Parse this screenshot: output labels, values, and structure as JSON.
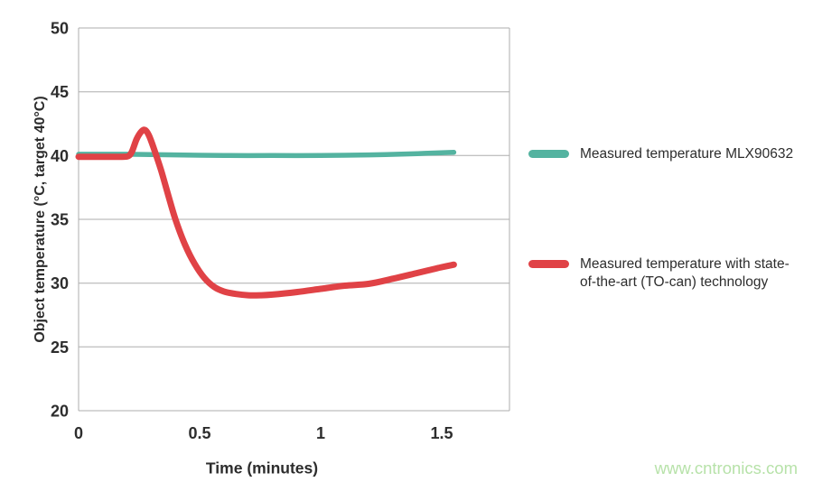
{
  "watermark": "www.cntronics.com",
  "chart_data": {
    "type": "line",
    "title": "",
    "xlabel": "Time (minutes)",
    "ylabel": "Object temperature (°C, target 40°C)",
    "xlim": [
      0,
      1.78
    ],
    "ylim": [
      20,
      50
    ],
    "grid": "horizontal-gridlines-only",
    "legend_position": "right-outside",
    "axis_color": "#adadad",
    "text_color": "#2d2d2d",
    "xticks": [
      {
        "v": 0,
        "label": "0"
      },
      {
        "v": 0.5,
        "label": "0.5"
      },
      {
        "v": 1,
        "label": "1"
      },
      {
        "v": 1.5,
        "label": "1.5"
      }
    ],
    "yticks": [
      {
        "v": 20,
        "label": "20"
      },
      {
        "v": 25,
        "label": "25"
      },
      {
        "v": 30,
        "label": "30"
      },
      {
        "v": 35,
        "label": "35"
      },
      {
        "v": 40,
        "label": "40"
      },
      {
        "v": 45,
        "label": "45"
      },
      {
        "v": 50,
        "label": "50"
      }
    ],
    "series": [
      {
        "name": "Measured temperature MLX90632",
        "color": "#54b3a0",
        "x": [
          0,
          0.2,
          0.4,
          0.6,
          0.8,
          1.0,
          1.2,
          1.4,
          1.55
        ],
        "y": [
          40.1,
          40.1,
          40.05,
          40.0,
          40.0,
          40.0,
          40.05,
          40.15,
          40.25
        ]
      },
      {
        "name": "Measured temperature with state-of-the-art (TO-can) technology",
        "color": "#e04246",
        "x": [
          0,
          0.1,
          0.18,
          0.205,
          0.22,
          0.24,
          0.26,
          0.275,
          0.29,
          0.31,
          0.34,
          0.37,
          0.4,
          0.44,
          0.48,
          0.52,
          0.56,
          0.6,
          0.65,
          0.7,
          0.75,
          0.8,
          0.9,
          1.0,
          1.1,
          1.2,
          1.3,
          1.4,
          1.5,
          1.55
        ],
        "y": [
          39.9,
          39.9,
          39.9,
          39.95,
          40.3,
          41.3,
          41.9,
          42.0,
          41.6,
          40.6,
          38.9,
          36.9,
          35.0,
          33.0,
          31.5,
          30.4,
          29.7,
          29.35,
          29.15,
          29.05,
          29.05,
          29.1,
          29.3,
          29.55,
          29.8,
          29.95,
          30.35,
          30.8,
          31.25,
          31.45
        ]
      }
    ]
  }
}
